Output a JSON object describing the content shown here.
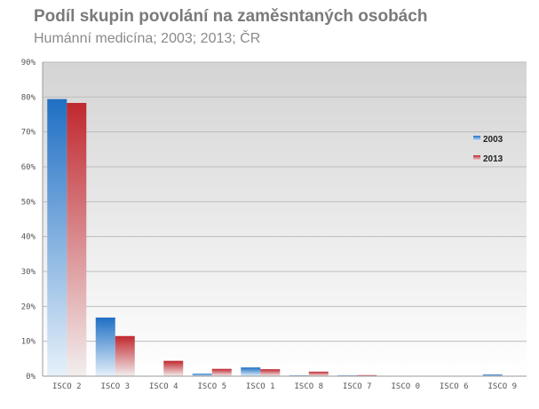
{
  "header": {
    "title": "Podíl skupin povolání na zaměsntaných osobách",
    "subtitle": "Humánní medicína;  2003; 2013; ČR"
  },
  "chart_data": {
    "type": "bar",
    "categories": [
      "ISCO 2",
      "ISCO 3",
      "ISCO 4",
      "ISCO 5",
      "ISCO 1",
      "ISCO 8",
      "ISCO 7",
      "ISCO 0",
      "ISCO 6",
      "ISCO 9"
    ],
    "series": [
      {
        "name": "2003",
        "color": "#1f6fc4",
        "values": [
          79.4,
          16.8,
          0.1,
          0.7,
          2.5,
          0.2,
          0.2,
          0.0,
          0.0,
          0.5
        ]
      },
      {
        "name": "2013",
        "color": "#c0282f",
        "values": [
          78.3,
          11.5,
          4.4,
          2.1,
          2.0,
          1.3,
          0.3,
          0.1,
          0.0,
          0.1
        ]
      }
    ],
    "ylim": [
      0,
      90
    ],
    "yticks": [
      "0%",
      "10%",
      "20%",
      "30%",
      "40%",
      "50%",
      "60%",
      "70%",
      "80%",
      "90%"
    ],
    "legend_position": "right",
    "grid": true
  }
}
